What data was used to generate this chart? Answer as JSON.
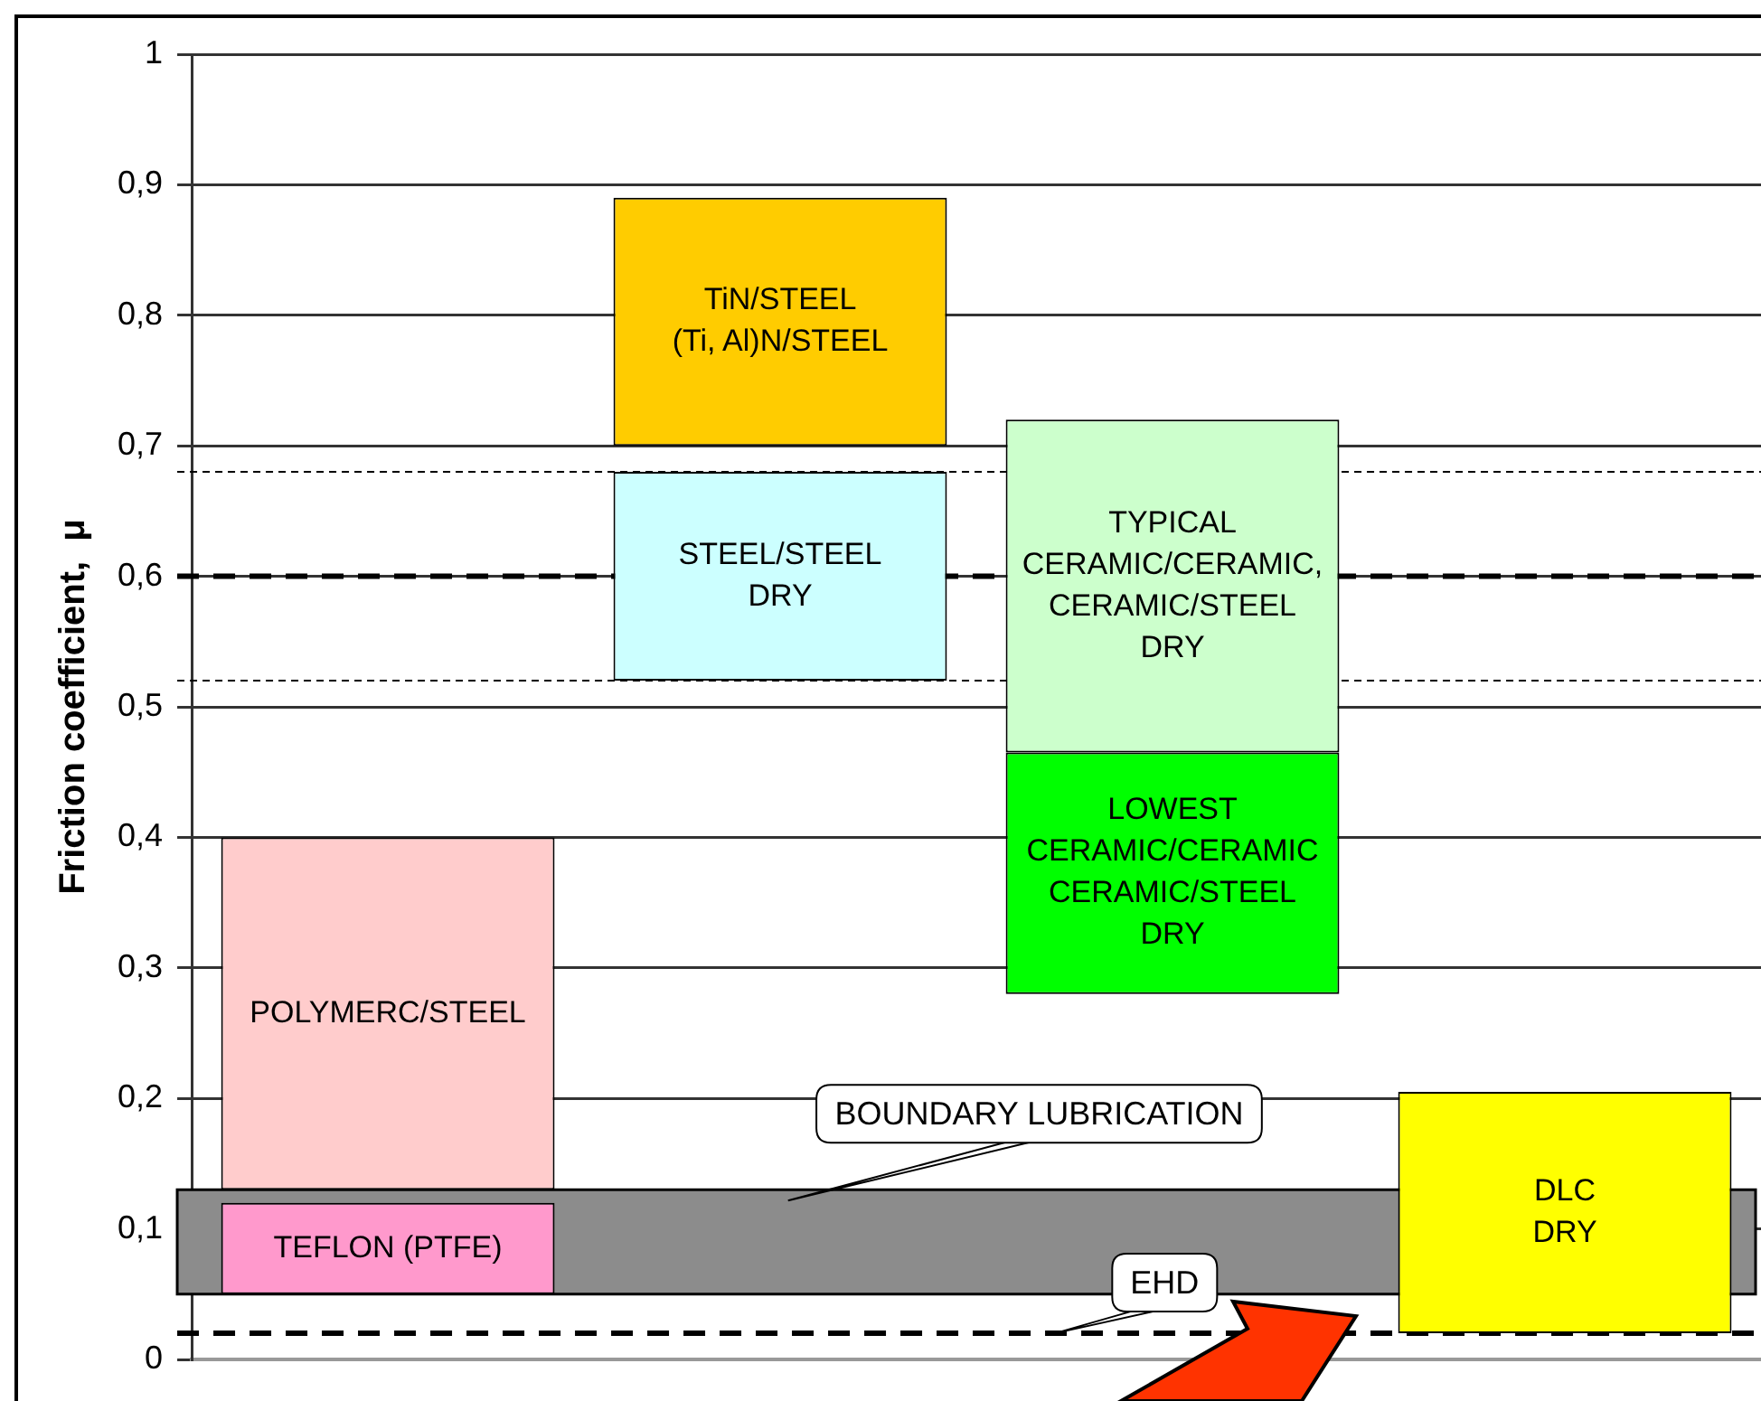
{
  "chart_data": {
    "type": "bar",
    "ylabel": "Friction coefficient,  μ",
    "categories": [
      null,
      null,
      null,
      null
    ],
    "series": [
      {
        "colors": [
          "#ff99cc",
          "#ccffff",
          "#00ff00",
          "#ffff00"
        ],
        "base": [
          0.05,
          0.52,
          0.28,
          0.02
        ],
        "values": [
          0.07,
          0.16,
          0.185,
          0.185
        ],
        "value_labels": [
          "TEFLON (PTFE)",
          "STEEL/STEEL\nDRY",
          "LOWEST\nCERAMIC/CERAMIC\nCERAMIC/STEEL\nDRY",
          "DLC\nDRY"
        ]
      },
      {
        "colors": [
          "#ffcccc",
          "#ffcc00",
          "#ccffcc",
          null
        ],
        "base": [
          0.13,
          0.7,
          0.465,
          null
        ],
        "values": [
          0.27,
          0.19,
          0.255,
          null
        ],
        "value_labels": [
          "POLYMERC/STEEL",
          "TiN/STEEL\n(Ti, Al)N/STEEL",
          "TYPICAL\nCERAMIC/CERAMIC,\nCERAMIC/STEEL\nDRY",
          null
        ]
      }
    ],
    "ylim": [
      0,
      1
    ],
    "yticks": [
      0,
      {
        "value": 0.1,
        "label": "0,1"
      },
      {
        "value": 0.2,
        "label": "0,2"
      },
      {
        "value": 0.3,
        "label": "0,3"
      },
      {
        "value": 0.4,
        "label": "0,4"
      },
      {
        "value": 0.5,
        "label": "0,5"
      },
      {
        "value": 0.6,
        "label": "0,6"
      },
      {
        "value": 0.7,
        "label": "0,7"
      },
      {
        "value": 0.8,
        "label": "0,8"
      },
      {
        "value": 0.9,
        "label": "0,9"
      },
      1
    ],
    "grid": "y",
    "legend": false,
    "bands": [
      {
        "axis": "y",
        "from": 0.05,
        "to": 0.13,
        "label": "BOUNDARY LUBRICATION",
        "color": "#8c8c8c"
      }
    ],
    "ref_lines": [
      {
        "axis": "y",
        "value": 0.6,
        "line_style": "dashed"
      },
      {
        "axis": "y",
        "value": 0.68,
        "line_style": "dotted"
      },
      {
        "axis": "y",
        "value": 0.52,
        "line_style": "dotted"
      },
      {
        "axis": "y",
        "value": 0.02,
        "label": "EHD",
        "line_style": "dashed"
      }
    ]
  }
}
